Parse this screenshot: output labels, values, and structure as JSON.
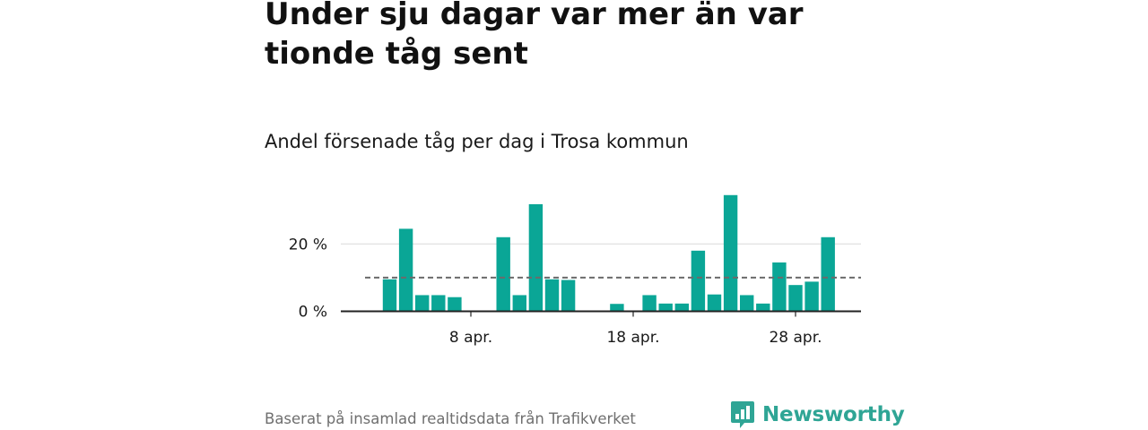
{
  "headline": "Under sju dagar var mer än var tionde tåg sent",
  "subtitle": "Andel försenade tåg per dag i Trosa kommun",
  "footer": {
    "source": "Baserat på insamlad realtidsdata från Trafikverket",
    "brand": "Newsworthy"
  },
  "colors": {
    "bar": "#0aa696",
    "gridline": "#d9d9d9",
    "baseline": "#222222",
    "average_line": "#6b6b6b",
    "brand": "#2fa595"
  },
  "chart_data": {
    "type": "bar",
    "title": "Andel försenade tåg per dag i Trosa kommun",
    "xlabel": "",
    "ylabel": "",
    "x_unit": "day of April",
    "x_start_day": 1,
    "x_end_day": 30,
    "x_ticks": [
      {
        "day": 8,
        "label": "8 apr."
      },
      {
        "day": 18,
        "label": "18 apr."
      },
      {
        "day": 28,
        "label": "28 apr."
      }
    ],
    "y_ticks": [
      {
        "value": 0,
        "label": "0 %"
      },
      {
        "value": 20,
        "label": "20 %"
      }
    ],
    "ylim": [
      0,
      35
    ],
    "grid": "horizontal",
    "reference_line": {
      "value": 10,
      "style": "dashed"
    },
    "series": [
      {
        "values": [
          {
            "day": 3,
            "value": 9.5
          },
          {
            "day": 4,
            "value": 24.5
          },
          {
            "day": 5,
            "value": 4.8
          },
          {
            "day": 6,
            "value": 4.8
          },
          {
            "day": 7,
            "value": 4.2
          },
          {
            "day": 10,
            "value": 22
          },
          {
            "day": 11,
            "value": 4.8
          },
          {
            "day": 12,
            "value": 31.8
          },
          {
            "day": 13,
            "value": 9.5
          },
          {
            "day": 14,
            "value": 9.3
          },
          {
            "day": 17,
            "value": 2.2
          },
          {
            "day": 19,
            "value": 4.8
          },
          {
            "day": 20,
            "value": 2.3
          },
          {
            "day": 21,
            "value": 2.3
          },
          {
            "day": 22,
            "value": 18
          },
          {
            "day": 23,
            "value": 5
          },
          {
            "day": 24,
            "value": 34.5
          },
          {
            "day": 25,
            "value": 4.8
          },
          {
            "day": 26,
            "value": 2.3
          },
          {
            "day": 27,
            "value": 14.5
          },
          {
            "day": 28,
            "value": 7.8
          },
          {
            "day": 29,
            "value": 8.8
          },
          {
            "day": 30,
            "value": 22
          }
        ]
      }
    ]
  }
}
